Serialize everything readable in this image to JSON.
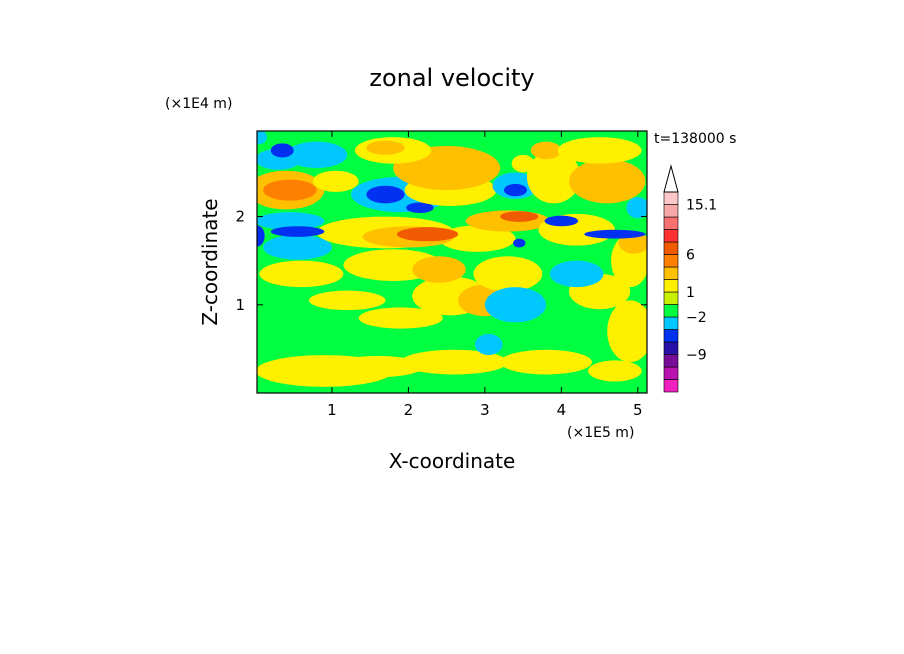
{
  "chart_data": {
    "type": "heatmap",
    "title": "zonal velocity",
    "xlabel": "X-coordinate",
    "ylabel": "Z-coordinate",
    "x_unit": "(×1E5 m)",
    "y_unit": "(×1E4 m)",
    "time_label": "t=138000 s",
    "xlim": [
      0.02,
      5.12
    ],
    "ylim": [
      0.0,
      2.97
    ],
    "x_ticks": [
      {
        "value": 1,
        "label": "1"
      },
      {
        "value": 2,
        "label": "2"
      },
      {
        "value": 3,
        "label": "3"
      },
      {
        "value": 4,
        "label": "4"
      },
      {
        "value": 5,
        "label": "5"
      }
    ],
    "y_ticks": [
      {
        "value": 1,
        "label": "1"
      },
      {
        "value": 2,
        "label": "2"
      }
    ],
    "colorbar": {
      "levels_colors": [
        "#f01fc0",
        "#b812b0",
        "#780c99",
        "#2a10a8",
        "#0030f0",
        "#00c8ff",
        "#00ff40",
        "#c8f000",
        "#fff000",
        "#ffc000",
        "#ff8000",
        "#f05a00",
        "#ff3030",
        "#f87070",
        "#f7a8a8",
        "#ffc8c8"
      ],
      "labels": [
        {
          "value": "15.1",
          "level": 15
        },
        {
          "value": "6",
          "level": 11
        },
        {
          "value": "1",
          "level": 8
        },
        {
          "value": "−2",
          "level": 6
        },
        {
          "value": "−9",
          "level": 3
        }
      ]
    },
    "field": {
      "background_color": "#00ff40",
      "blobs": [
        {
          "x": 0.9,
          "z": 0.25,
          "rx": 0.9,
          "rz": 0.18,
          "c": "#fff000"
        },
        {
          "x": 1.6,
          "z": 0.3,
          "rx": 0.6,
          "rz": 0.12,
          "c": "#fff000"
        },
        {
          "x": 2.6,
          "z": 0.35,
          "rx": 0.7,
          "rz": 0.14,
          "c": "#fff000"
        },
        {
          "x": 3.8,
          "z": 0.35,
          "rx": 0.6,
          "rz": 0.14,
          "c": "#fff000"
        },
        {
          "x": 4.7,
          "z": 0.25,
          "rx": 0.35,
          "rz": 0.12,
          "c": "#fff000"
        },
        {
          "x": 4.9,
          "z": 0.7,
          "rx": 0.3,
          "rz": 0.35,
          "c": "#fff000"
        },
        {
          "x": 1.9,
          "z": 0.85,
          "rx": 0.55,
          "rz": 0.12,
          "c": "#fff000"
        },
        {
          "x": 1.2,
          "z": 1.05,
          "rx": 0.5,
          "rz": 0.11,
          "c": "#fff000"
        },
        {
          "x": 2.55,
          "z": 1.1,
          "rx": 0.5,
          "rz": 0.22,
          "c": "#fff000"
        },
        {
          "x": 3.0,
          "z": 1.05,
          "rx": 0.35,
          "rz": 0.18,
          "c": "#ffc000"
        },
        {
          "x": 4.5,
          "z": 1.15,
          "rx": 0.4,
          "rz": 0.2,
          "c": "#fff000"
        },
        {
          "x": 0.6,
          "z": 1.35,
          "rx": 0.55,
          "rz": 0.15,
          "c": "#fff000"
        },
        {
          "x": 1.8,
          "z": 1.45,
          "rx": 0.65,
          "rz": 0.18,
          "c": "#fff000"
        },
        {
          "x": 2.4,
          "z": 1.4,
          "rx": 0.35,
          "rz": 0.15,
          "c": "#ffc000"
        },
        {
          "x": 3.3,
          "z": 1.35,
          "rx": 0.45,
          "rz": 0.2,
          "c": "#fff000"
        },
        {
          "x": 4.9,
          "z": 1.5,
          "rx": 0.25,
          "rz": 0.3,
          "c": "#fff000"
        },
        {
          "x": 0.55,
          "z": 1.65,
          "rx": 0.45,
          "rz": 0.14,
          "c": "#00c8ff"
        },
        {
          "x": 3.4,
          "z": 1.0,
          "rx": 0.4,
          "rz": 0.2,
          "c": "#00c8ff"
        },
        {
          "x": 4.2,
          "z": 1.35,
          "rx": 0.35,
          "rz": 0.15,
          "c": "#00c8ff"
        },
        {
          "x": 3.05,
          "z": 0.55,
          "rx": 0.18,
          "rz": 0.12,
          "c": "#00c8ff"
        },
        {
          "x": 1.7,
          "z": 1.82,
          "rx": 0.9,
          "rz": 0.18,
          "c": "#fff000"
        },
        {
          "x": 2.9,
          "z": 1.75,
          "rx": 0.5,
          "rz": 0.15,
          "c": "#fff000"
        },
        {
          "x": 2.0,
          "z": 1.77,
          "rx": 0.6,
          "rz": 0.12,
          "c": "#ffc000"
        },
        {
          "x": 2.25,
          "z": 1.8,
          "rx": 0.4,
          "rz": 0.08,
          "c": "#f05a00"
        },
        {
          "x": 3.3,
          "z": 1.95,
          "rx": 0.55,
          "rz": 0.12,
          "c": "#ffc000"
        },
        {
          "x": 3.45,
          "z": 2.0,
          "rx": 0.25,
          "rz": 0.06,
          "c": "#f05a00"
        },
        {
          "x": 4.2,
          "z": 1.85,
          "rx": 0.5,
          "rz": 0.18,
          "c": "#fff000"
        },
        {
          "x": 4.95,
          "z": 1.7,
          "rx": 0.2,
          "rz": 0.12,
          "c": "#ffc000"
        },
        {
          "x": 0.45,
          "z": 1.95,
          "rx": 0.45,
          "rz": 0.1,
          "c": "#00c8ff"
        },
        {
          "x": 0.55,
          "z": 1.83,
          "rx": 0.35,
          "rz": 0.06,
          "c": "#0030f0"
        },
        {
          "x": 0.02,
          "z": 1.78,
          "rx": 0.1,
          "rz": 0.12,
          "c": "#0030f0"
        },
        {
          "x": 3.45,
          "z": 1.7,
          "rx": 0.08,
          "rz": 0.05,
          "c": "#0030f0"
        },
        {
          "x": 4.7,
          "z": 1.8,
          "rx": 0.4,
          "rz": 0.05,
          "c": "#0030f0"
        },
        {
          "x": 4.0,
          "z": 1.95,
          "rx": 0.22,
          "rz": 0.06,
          "c": "#0030f0"
        },
        {
          "x": 0.4,
          "z": 2.3,
          "rx": 0.5,
          "rz": 0.22,
          "c": "#ffc000"
        },
        {
          "x": 0.45,
          "z": 2.3,
          "rx": 0.35,
          "rz": 0.12,
          "c": "#ff8000"
        },
        {
          "x": 0.8,
          "z": 2.7,
          "rx": 0.4,
          "rz": 0.15,
          "c": "#00c8ff"
        },
        {
          "x": 1.05,
          "z": 2.4,
          "rx": 0.3,
          "rz": 0.12,
          "c": "#fff000"
        },
        {
          "x": 1.9,
          "z": 2.25,
          "rx": 0.65,
          "rz": 0.2,
          "c": "#00c8ff"
        },
        {
          "x": 1.7,
          "z": 2.25,
          "rx": 0.25,
          "rz": 0.1,
          "c": "#0030f0"
        },
        {
          "x": 2.15,
          "z": 2.1,
          "rx": 0.18,
          "rz": 0.06,
          "c": "#0030f0"
        },
        {
          "x": 2.55,
          "z": 2.3,
          "rx": 0.6,
          "rz": 0.18,
          "c": "#fff000"
        },
        {
          "x": 2.5,
          "z": 2.55,
          "rx": 0.7,
          "rz": 0.25,
          "c": "#ffc000"
        },
        {
          "x": 1.8,
          "z": 2.75,
          "rx": 0.5,
          "rz": 0.15,
          "c": "#fff000"
        },
        {
          "x": 1.7,
          "z": 2.78,
          "rx": 0.25,
          "rz": 0.08,
          "c": "#ffc000"
        },
        {
          "x": 3.4,
          "z": 2.35,
          "rx": 0.3,
          "rz": 0.15,
          "c": "#00c8ff"
        },
        {
          "x": 3.4,
          "z": 2.3,
          "rx": 0.15,
          "rz": 0.07,
          "c": "#0030f0"
        },
        {
          "x": 3.5,
          "z": 2.6,
          "rx": 0.15,
          "rz": 0.1,
          "c": "#fff000"
        },
        {
          "x": 3.9,
          "z": 2.45,
          "rx": 0.35,
          "rz": 0.3,
          "c": "#fff000"
        },
        {
          "x": 3.8,
          "z": 2.75,
          "rx": 0.2,
          "rz": 0.1,
          "c": "#ffc000"
        },
        {
          "x": 4.6,
          "z": 2.4,
          "rx": 0.5,
          "rz": 0.25,
          "c": "#ffc000"
        },
        {
          "x": 4.5,
          "z": 2.75,
          "rx": 0.55,
          "rz": 0.15,
          "c": "#fff000"
        },
        {
          "x": 5.0,
          "z": 2.1,
          "rx": 0.15,
          "rz": 0.12,
          "c": "#00c8ff"
        },
        {
          "x": 0.3,
          "z": 2.65,
          "rx": 0.3,
          "rz": 0.12,
          "c": "#00c8ff"
        },
        {
          "x": 0.35,
          "z": 2.75,
          "rx": 0.15,
          "rz": 0.08,
          "c": "#0030f0"
        },
        {
          "x": 0.05,
          "z": 2.9,
          "rx": 0.1,
          "rz": 0.08,
          "c": "#00c8ff"
        }
      ]
    }
  }
}
